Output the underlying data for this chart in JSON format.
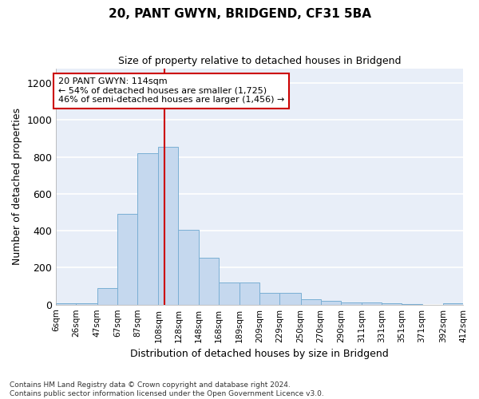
{
  "title": "20, PANT GWYN, BRIDGEND, CF31 5BA",
  "subtitle": "Size of property relative to detached houses in Bridgend",
  "xlabel": "Distribution of detached houses by size in Bridgend",
  "ylabel": "Number of detached properties",
  "bar_color": "#c5d8ee",
  "bar_edge_color": "#7aafd4",
  "vline_color": "#cc0000",
  "vline_x": 114,
  "annotation_text": "20 PANT GWYN: 114sqm\n← 54% of detached houses are smaller (1,725)\n46% of semi-detached houses are larger (1,456) →",
  "annotation_box_color": "#ffffff",
  "annotation_box_edge": "#cc0000",
  "bins": [
    6,
    26,
    47,
    67,
    87,
    108,
    128,
    148,
    168,
    189,
    209,
    229,
    250,
    270,
    290,
    311,
    331,
    351,
    371,
    392,
    412
  ],
  "counts": [
    8,
    8,
    90,
    490,
    820,
    855,
    405,
    255,
    120,
    120,
    65,
    65,
    30,
    20,
    12,
    12,
    8,
    5,
    0,
    8
  ],
  "tick_labels": [
    "6sqm",
    "26sqm",
    "47sqm",
    "67sqm",
    "87sqm",
    "108sqm",
    "128sqm",
    "148sqm",
    "168sqm",
    "189sqm",
    "209sqm",
    "229sqm",
    "250sqm",
    "270sqm",
    "290sqm",
    "311sqm",
    "331sqm",
    "351sqm",
    "371sqm",
    "392sqm",
    "412sqm"
  ],
  "footer_text": "Contains HM Land Registry data © Crown copyright and database right 2024.\nContains public sector information licensed under the Open Government Licence v3.0.",
  "ylim": [
    0,
    1280
  ],
  "yticks": [
    0,
    200,
    400,
    600,
    800,
    1000,
    1200
  ],
  "background_color": "#ffffff",
  "plot_bg_color": "#e8eef8",
  "grid_color": "#ffffff",
  "figsize": [
    6.0,
    5.0
  ],
  "dpi": 100
}
